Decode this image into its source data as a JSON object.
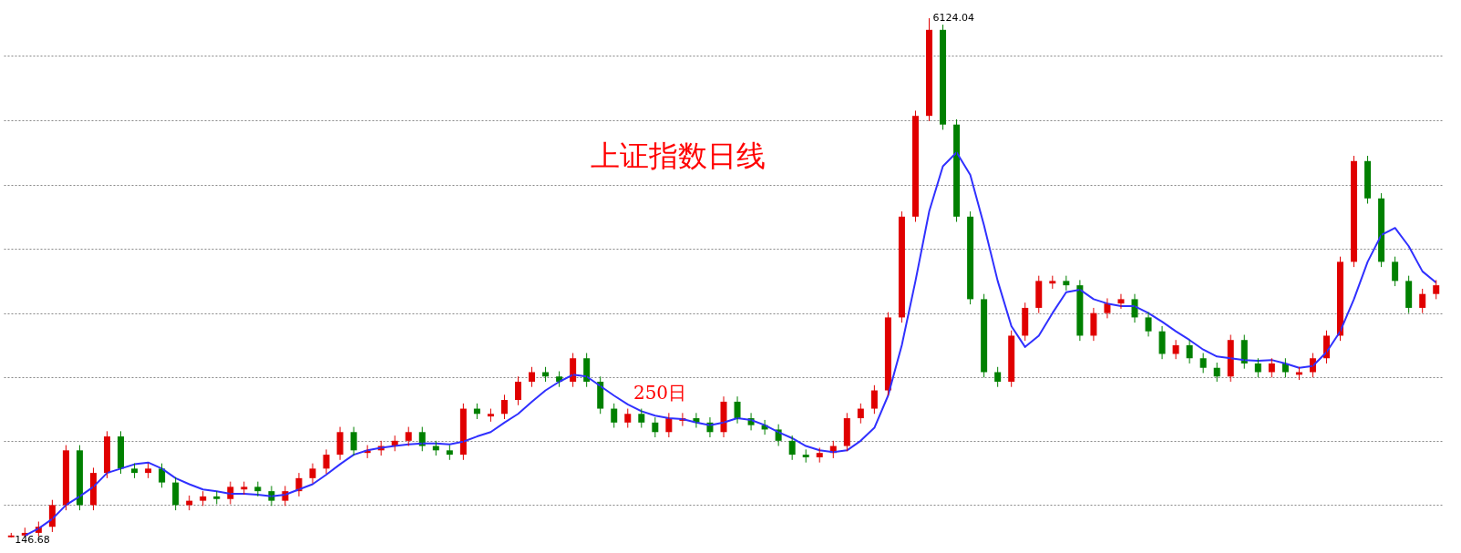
{
  "chart_data": {
    "type": "candlestick",
    "title": "上证指数日线",
    "annotations": [
      "250日",
      "6124.04",
      "146.68"
    ],
    "categories": [
      null,
      null,
      null,
      null,
      null,
      null,
      null,
      null,
      null,
      null,
      null,
      null,
      null,
      null,
      null,
      null,
      null,
      null,
      null,
      null,
      null,
      null,
      null,
      null,
      null,
      null,
      null,
      null,
      null,
      null,
      null,
      null,
      null,
      null,
      null,
      null,
      null,
      null,
      null,
      null,
      null,
      null,
      null,
      null,
      null,
      null,
      null,
      null,
      null,
      null,
      null,
      null,
      null,
      null,
      null,
      null,
      null,
      null,
      null,
      null,
      null,
      null,
      null,
      null,
      null,
      null,
      null,
      null,
      null,
      null,
      null,
      null,
      null,
      null,
      null,
      null,
      null,
      null,
      null,
      null,
      null,
      null,
      null,
      null,
      null,
      null,
      null,
      null,
      null,
      null,
      null,
      null,
      null,
      null,
      null,
      null,
      null,
      null,
      null,
      null,
      null,
      null,
      null,
      null,
      null
    ],
    "ohlc": [
      [
        150,
        200,
        146.68,
        170
      ],
      [
        170,
        260,
        150,
        200
      ],
      [
        200,
        330,
        160,
        270
      ],
      [
        270,
        580,
        210,
        520
      ],
      [
        520,
        1210,
        460,
        1150
      ],
      [
        1150,
        1210,
        460,
        520
      ],
      [
        520,
        950,
        460,
        890
      ],
      [
        890,
        1370,
        830,
        1310
      ],
      [
        1310,
        1370,
        880,
        940
      ],
      [
        940,
        1000,
        830,
        890
      ],
      [
        890,
        1000,
        830,
        940
      ],
      [
        940,
        1000,
        720,
        780
      ],
      [
        780,
        840,
        460,
        520
      ],
      [
        520,
        630,
        460,
        570
      ],
      [
        570,
        680,
        510,
        620
      ],
      [
        620,
        680,
        530,
        590
      ],
      [
        590,
        790,
        530,
        730
      ],
      [
        700,
        790,
        640,
        730
      ],
      [
        730,
        790,
        620,
        680
      ],
      [
        680,
        740,
        510,
        570
      ],
      [
        570,
        740,
        510,
        680
      ],
      [
        680,
        890,
        620,
        830
      ],
      [
        830,
        1000,
        770,
        940
      ],
      [
        940,
        1160,
        880,
        1100
      ],
      [
        1100,
        1420,
        1040,
        1360
      ],
      [
        1360,
        1420,
        1090,
        1150
      ],
      [
        1120,
        1210,
        1060,
        1150
      ],
      [
        1150,
        1260,
        1090,
        1200
      ],
      [
        1200,
        1320,
        1140,
        1260
      ],
      [
        1260,
        1420,
        1200,
        1360
      ],
      [
        1360,
        1420,
        1140,
        1200
      ],
      [
        1200,
        1260,
        1090,
        1150
      ],
      [
        1150,
        1210,
        1040,
        1100
      ],
      [
        1100,
        1690,
        1040,
        1630
      ],
      [
        1630,
        1690,
        1510,
        1570
      ],
      [
        1540,
        1630,
        1480,
        1570
      ],
      [
        1570,
        1790,
        1510,
        1730
      ],
      [
        1730,
        2000,
        1670,
        1940
      ],
      [
        1940,
        2110,
        1880,
        2050
      ],
      [
        2050,
        2110,
        1940,
        2000
      ],
      [
        2000,
        2060,
        1880,
        1940
      ],
      [
        1940,
        2270,
        1880,
        2210
      ],
      [
        2210,
        2270,
        1880,
        1940
      ],
      [
        1940,
        2000,
        1570,
        1630
      ],
      [
        1630,
        1690,
        1410,
        1470
      ],
      [
        1470,
        1630,
        1410,
        1570
      ],
      [
        1570,
        1630,
        1410,
        1470
      ],
      [
        1470,
        1530,
        1300,
        1360
      ],
      [
        1360,
        1580,
        1300,
        1520
      ],
      [
        1490,
        1580,
        1430,
        1520
      ],
      [
        1520,
        1580,
        1410,
        1470
      ],
      [
        1470,
        1530,
        1300,
        1360
      ],
      [
        1360,
        1770,
        1300,
        1710
      ],
      [
        1710,
        1770,
        1460,
        1520
      ],
      [
        1520,
        1580,
        1380,
        1440
      ],
      [
        1440,
        1500,
        1330,
        1390
      ],
      [
        1390,
        1450,
        1200,
        1260
      ],
      [
        1260,
        1320,
        1040,
        1100
      ],
      [
        1100,
        1160,
        1010,
        1070
      ],
      [
        1070,
        1180,
        1010,
        1120
      ],
      [
        1120,
        1260,
        1060,
        1200
      ],
      [
        1200,
        1580,
        1140,
        1520
      ],
      [
        1520,
        1690,
        1460,
        1630
      ],
      [
        1630,
        1900,
        1570,
        1840
      ],
      [
        1840,
        2740,
        1780,
        2680
      ],
      [
        2680,
        3900,
        2620,
        3840
      ],
      [
        3840,
        5060,
        3780,
        5000
      ],
      [
        5000,
        6124.04,
        4940,
        5990
      ],
      [
        5990,
        6050,
        4840,
        4900
      ],
      [
        4900,
        4960,
        3780,
        3840
      ],
      [
        3840,
        3900,
        2830,
        2890
      ],
      [
        2890,
        2950,
        1990,
        2050
      ],
      [
        2050,
        2110,
        1880,
        1940
      ],
      [
        1940,
        2530,
        1880,
        2470
      ],
      [
        2470,
        2850,
        2410,
        2790
      ],
      [
        2790,
        3160,
        2730,
        3100
      ],
      [
        3070,
        3160,
        3010,
        3100
      ],
      [
        3100,
        3160,
        2990,
        3050
      ],
      [
        3050,
        3110,
        2410,
        2470
      ],
      [
        2470,
        2790,
        2410,
        2730
      ],
      [
        2730,
        2900,
        2670,
        2840
      ],
      [
        2840,
        2950,
        2780,
        2890
      ],
      [
        2890,
        2950,
        2620,
        2680
      ],
      [
        2680,
        2740,
        2460,
        2520
      ],
      [
        2520,
        2580,
        2200,
        2260
      ],
      [
        2260,
        2420,
        2200,
        2360
      ],
      [
        2360,
        2420,
        2150,
        2210
      ],
      [
        2210,
        2270,
        2040,
        2100
      ],
      [
        2100,
        2160,
        1940,
        2000
      ],
      [
        2000,
        2480,
        1940,
        2420
      ],
      [
        2420,
        2480,
        2090,
        2150
      ],
      [
        2150,
        2210,
        1990,
        2050
      ],
      [
        2050,
        2210,
        1990,
        2150
      ],
      [
        2150,
        2210,
        1990,
        2050
      ],
      [
        2020,
        2110,
        1960,
        2050
      ],
      [
        2050,
        2270,
        1990,
        2210
      ],
      [
        2210,
        2530,
        2150,
        2470
      ],
      [
        2470,
        3380,
        2410,
        3320
      ],
      [
        3320,
        4540,
        3260,
        4480
      ],
      [
        4480,
        4540,
        3990,
        4050
      ],
      [
        4050,
        4110,
        3260,
        3320
      ],
      [
        3320,
        3380,
        3040,
        3100
      ],
      [
        3100,
        3160,
        2730,
        2790
      ],
      [
        2790,
        3010,
        2730,
        2950
      ],
      [
        2950,
        3110,
        2890,
        3050
      ]
    ],
    "colors": [
      "#e00000",
      "#e00000",
      "#e00000",
      "#e00000",
      "#e00000",
      "#008000",
      "#e00000",
      "#e00000",
      "#008000",
      "#008000",
      "#e00000",
      "#008000",
      "#008000",
      "#e00000",
      "#e00000",
      "#008000",
      "#e00000",
      "#e00000",
      "#008000",
      "#008000",
      "#e00000",
      "#e00000",
      "#e00000",
      "#e00000",
      "#e00000",
      "#008000",
      "#e00000",
      "#e00000",
      "#e00000",
      "#e00000",
      "#008000",
      "#008000",
      "#008000",
      "#e00000",
      "#008000",
      "#e00000",
      "#e00000",
      "#e00000",
      "#e00000",
      "#008000",
      "#008000",
      "#e00000",
      "#008000",
      "#008000",
      "#008000",
      "#e00000",
      "#008000",
      "#008000",
      "#e00000",
      "#e00000",
      "#008000",
      "#008000",
      "#e00000",
      "#008000",
      "#008000",
      "#008000",
      "#008000",
      "#008000",
      "#008000",
      "#e00000",
      "#e00000",
      "#e00000",
      "#e00000",
      "#e00000",
      "#e00000",
      "#e00000",
      "#e00000",
      "#e00000",
      "#008000",
      "#008000",
      "#008000",
      "#008000",
      "#008000",
      "#e00000",
      "#e00000",
      "#e00000",
      "#e00000",
      "#008000",
      "#008000",
      "#e00000",
      "#e00000",
      "#e00000",
      "#008000",
      "#008000",
      "#008000",
      "#e00000",
      "#008000",
      "#008000",
      "#008000",
      "#e00000",
      "#008000",
      "#008000",
      "#e00000",
      "#008000",
      "#e00000",
      "#e00000",
      "#e00000",
      "#e00000",
      "#e00000",
      "#008000",
      "#008000",
      "#008000",
      "#008000",
      "#e00000",
      "#e00000"
    ],
    "series": [
      {
        "type": "line",
        "color": "#3030ff",
        "values": [
          null,
          170,
          250,
          360,
          520,
          620,
          730,
          890,
          940,
          990,
          1010,
          940,
          830,
          760,
          700,
          680,
          650,
          650,
          640,
          620,
          640,
          700,
          760,
          870,
          990,
          1100,
          1150,
          1180,
          1200,
          1220,
          1230,
          1230,
          1220,
          1250,
          1310,
          1360,
          1470,
          1570,
          1710,
          1840,
          1940,
          2020,
          2000,
          1890,
          1780,
          1680,
          1600,
          1550,
          1520,
          1510,
          1470,
          1440,
          1470,
          1520,
          1500,
          1440,
          1360,
          1290,
          1200,
          1150,
          1130,
          1150,
          1260,
          1410,
          1780,
          2360,
          3100,
          3900,
          4420,
          4580,
          4320,
          3740,
          3100,
          2580,
          2340,
          2470,
          2730,
          2970,
          3000,
          2890,
          2840,
          2810,
          2810,
          2730,
          2630,
          2520,
          2420,
          2310,
          2230,
          2210,
          2190,
          2180,
          2190,
          2150,
          2100,
          2120,
          2280,
          2520,
          2890,
          3320,
          3630,
          3710,
          3500,
          3210,
          3080
        ]
      }
    ],
    "yticks": [
      {
        "value": 520,
        "label": null
      },
      {
        "value": 1260,
        "label": null
      },
      {
        "value": 1990,
        "label": null
      },
      {
        "value": 2730,
        "label": null
      },
      {
        "value": 3470,
        "label": null
      },
      {
        "value": 4210,
        "label": null
      },
      {
        "value": 4950,
        "label": null
      },
      {
        "value": 5690,
        "label": null
      }
    ],
    "grid": "y",
    "tick_labels": false,
    "marker": "none",
    "line_style": "solid"
  }
}
